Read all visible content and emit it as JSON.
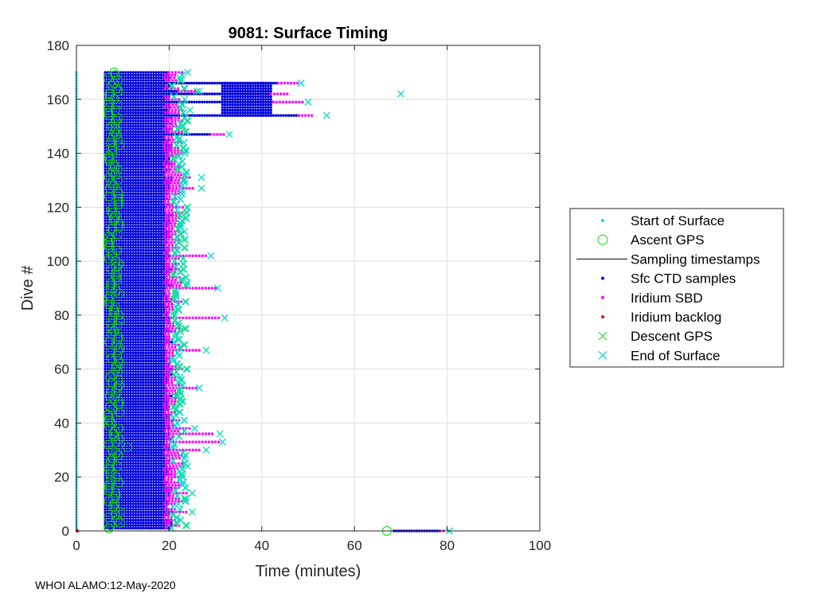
{
  "footer": "WHOI ALAMO:12-May-2020",
  "chart_data": {
    "type": "scatter",
    "title": "9081: Surface Timing",
    "xlabel": "Time (minutes)",
    "ylabel": "Dive #",
    "xlim": [
      0,
      100
    ],
    "ylim": [
      0,
      180
    ],
    "xticks": [
      0,
      20,
      40,
      60,
      80,
      100
    ],
    "yticks": [
      0,
      20,
      40,
      60,
      80,
      100,
      120,
      140,
      160,
      180
    ],
    "grid": true,
    "legend_position": "right",
    "legend": [
      {
        "name": "Start of Surface",
        "marker": "dot",
        "color": "#00e5e5"
      },
      {
        "name": "Ascent GPS",
        "marker": "circle",
        "color": "#00dd00"
      },
      {
        "name": "Sampling timestamps",
        "marker": "line",
        "color": "#000000"
      },
      {
        "name": "Sfc CTD samples",
        "marker": "dot",
        "color": "#0000dd"
      },
      {
        "name": "Iridium SBD",
        "marker": "dot",
        "color": "#ff00ff"
      },
      {
        "name": "Iridium backlog",
        "marker": "dot",
        "color": "#ff0000"
      },
      {
        "name": "Descent GPS",
        "marker": "x",
        "color": "#33dd33"
      },
      {
        "name": "End of Surface",
        "marker": "x",
        "color": "#00dddd"
      }
    ],
    "dive_range": [
      0,
      170
    ],
    "start_of_surface_x": 0,
    "ctd_start_x": 6.2,
    "typical_ctd_end_x": [
      19,
      21
    ],
    "typical_sbd_range_x": [
      19,
      24
    ],
    "typical_descent_gps_x": [
      21,
      24
    ],
    "typical_end_of_surface_x": [
      21,
      24
    ],
    "dives": [
      {
        "dive": 0,
        "ascent_gps": 67,
        "ctd_end": 78.5,
        "sbd": [
          78.5,
          79.5
        ],
        "backlog": 0.2,
        "descent_gps": 80.5,
        "end_of_surface": 80.5
      },
      {
        "dive": 7,
        "sbd": [
          19.5,
          24
        ],
        "descent_gps": 25,
        "end_of_surface": 25
      },
      {
        "dive": 14,
        "sbd": [
          19.5,
          24
        ],
        "descent_gps": 25,
        "end_of_surface": 25
      },
      {
        "dive": 24,
        "sbd": [
          19.5,
          23
        ],
        "descent_gps": 24,
        "end_of_surface": 24
      },
      {
        "dive": 30,
        "sbd": [
          19.5,
          27
        ],
        "descent_gps": 28,
        "end_of_surface": 28
      },
      {
        "dive": 31,
        "ascent_gps": 11
      },
      {
        "dive": 33,
        "sbd": [
          19.5,
          31
        ],
        "descent_gps": 31.5,
        "end_of_surface": 31.5
      },
      {
        "dive": 36,
        "sbd": [
          19.5,
          29.5
        ],
        "descent_gps": 31,
        "end_of_surface": 31
      },
      {
        "dive": 38,
        "sbd": [
          19.5,
          24.5
        ],
        "descent_gps": 25.5,
        "end_of_surface": 25.5
      },
      {
        "dive": 53,
        "sbd": [
          19.5,
          26
        ],
        "descent_gps": 26.5,
        "end_of_surface": 26.5
      },
      {
        "dive": 67,
        "sbd": [
          19.5,
          27
        ],
        "descent_gps": 28,
        "end_of_surface": 28
      },
      {
        "dive": 79,
        "sbd": [
          19.5,
          31
        ],
        "descent_gps": 32,
        "end_of_surface": 32
      },
      {
        "dive": 90,
        "sbd": [
          19.5,
          30
        ],
        "descent_gps": 30.5,
        "end_of_surface": 30.5
      },
      {
        "dive": 102,
        "sbd": [
          19.5,
          28
        ],
        "descent_gps": 29,
        "end_of_surface": 29
      },
      {
        "dive": 127,
        "sbd": [
          19.5,
          25.5
        ],
        "descent_gps": 27,
        "end_of_surface": 27
      },
      {
        "dive": 131,
        "sbd": [
          19.5,
          25
        ],
        "descent_gps": 27,
        "end_of_surface": 27
      },
      {
        "dive": 147,
        "ctd_end": 29,
        "sbd": [
          29,
          32
        ],
        "descent_gps": 33,
        "end_of_surface": 33
      },
      {
        "dive": 154,
        "ctd_end": 48,
        "sbd": [
          48,
          51
        ],
        "descent_gps": 54,
        "end_of_surface": 54
      },
      {
        "dive": 156,
        "ctd_end": 20,
        "sbd": [
          20,
          23
        ],
        "descent_gps": 24.5,
        "end_of_surface": 24.5
      },
      {
        "dive": 159,
        "ctd_end": 42.5,
        "sbd": [
          42.5,
          49
        ],
        "descent_gps": 50,
        "end_of_surface": 50
      },
      {
        "dive": 162,
        "ctd_end": 42,
        "sbd": [
          42,
          46
        ],
        "descent_gps": 70,
        "end_of_surface": 70
      },
      {
        "dive": 163,
        "ascent_gps": 9,
        "ctd_end": 22,
        "sbd": [
          22,
          26
        ],
        "descent_gps": 26,
        "end_of_surface": 26.5
      },
      {
        "dive": 166,
        "ctd_end": 43.5,
        "sbd": [
          43.5,
          48
        ],
        "descent_gps": 48.5,
        "end_of_surface": 48.5
      },
      {
        "dive": 170,
        "ctd_end": 20,
        "sbd": [
          20,
          23
        ],
        "descent_gps": 24,
        "end_of_surface": 24
      }
    ]
  }
}
